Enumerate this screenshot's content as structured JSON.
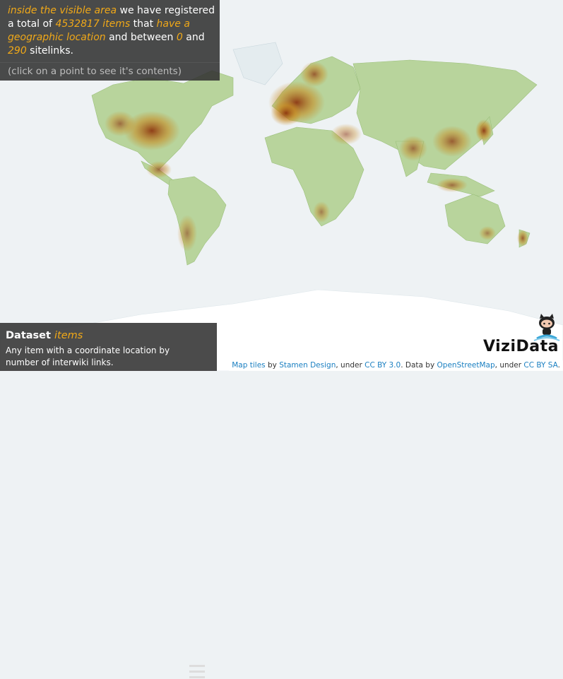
{
  "summary": {
    "visible_area_link": "inside the visible area",
    "text_1": " we have registered a total of ",
    "count": "4532817 items",
    "text_2": " that ",
    "geo_link": "have a geographic location",
    "text_3": " and between ",
    "min": "0",
    "text_4": " and ",
    "max": "290",
    "text_5": " sitelinks.",
    "hint": "(click on a point to see it's contents)"
  },
  "dataset": {
    "label": "Dataset",
    "name": "items",
    "description": "Any item with a coordinate location by number of interwiki links."
  },
  "brand": "ViziData",
  "icons": {
    "menu": "hamburger-menu-icon",
    "github": "github-octocat-icon"
  },
  "colors": {
    "highlight": "#f0a818",
    "panel": "#323232",
    "density_low": "#a9cf8a",
    "density_mid": "#c8861a",
    "density_high": "#8a2e0a"
  },
  "attribution": {
    "map_tiles": "Map tiles",
    "by": " by ",
    "stamen": "Stamen Design",
    "under1": ", under ",
    "ccby": "CC BY 3.0",
    "data_by": ". Data by ",
    "osm": "OpenStreetMap",
    "under2": ", under ",
    "ccbysa": "CC BY SA",
    "end": "."
  }
}
